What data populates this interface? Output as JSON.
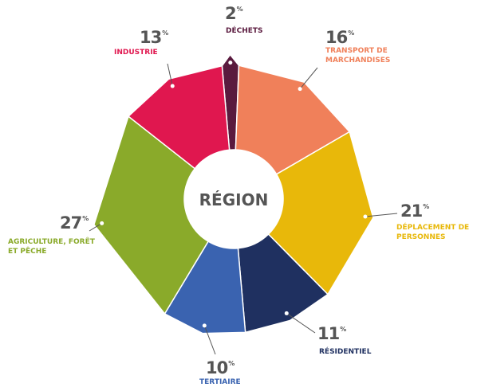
{
  "chart_data": {
    "type": "donut",
    "center_label": "RÉGION",
    "unit": "%",
    "categories": [
      "DÉCHETS",
      "TRANSPORT DE MARCHANDISES",
      "DÉPLACEMENT DE PERSONNES",
      "RÉSIDENTIEL",
      "TERTIAIRE",
      "AGRICULTURE, FORÊT ET PÊCHE",
      "INDUSTRIE"
    ],
    "values": [
      2,
      16,
      21,
      11,
      10,
      27,
      13
    ],
    "colors": [
      "#5a1a3e",
      "#f0805a",
      "#e8b80a",
      "#1f3060",
      "#3a63b0",
      "#8aaa2a",
      "#e0174f"
    ]
  }
}
